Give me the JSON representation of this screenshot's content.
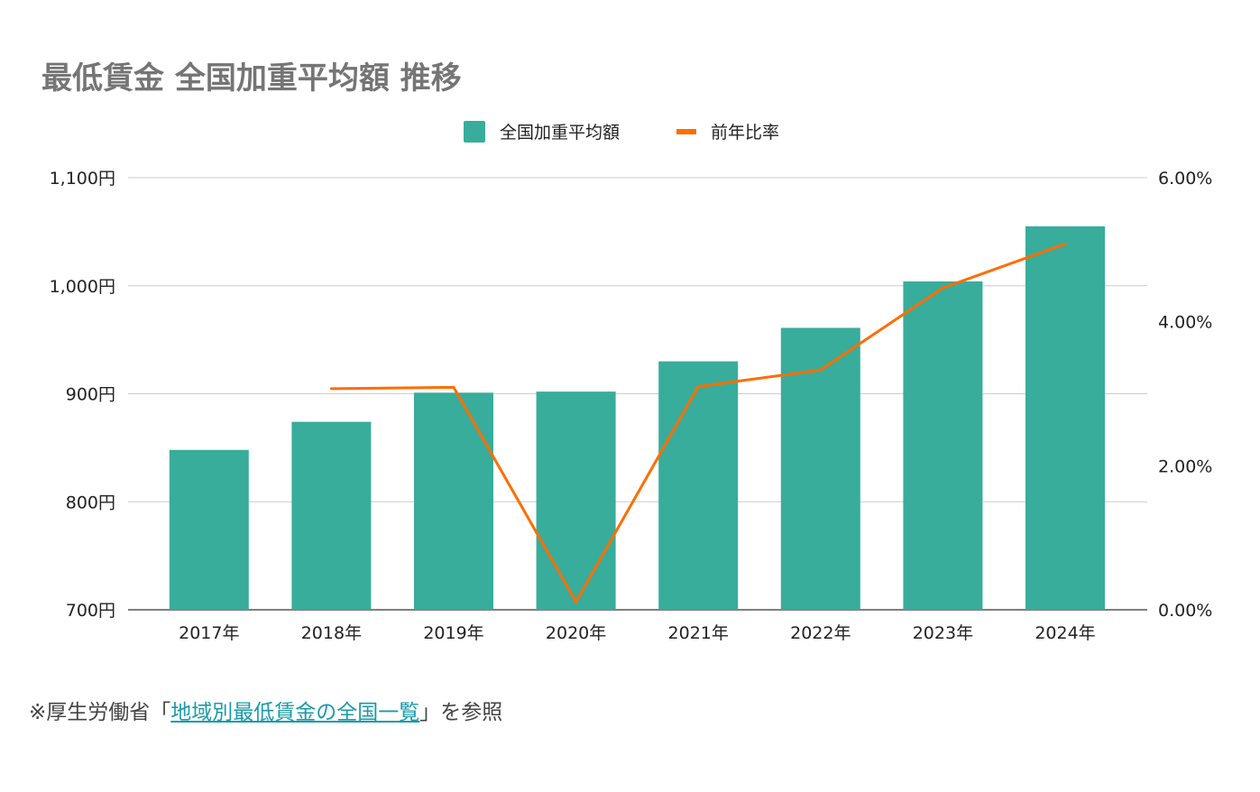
{
  "chart_data": {
    "type": "bar+line",
    "title": "最低賃金 全国加重平均額 推移",
    "categories": [
      "2017年",
      "2018年",
      "2019年",
      "2020年",
      "2021年",
      "2022年",
      "2023年",
      "2024年"
    ],
    "series": [
      {
        "name": "全国加重平均額",
        "type": "bar",
        "axis": "left",
        "color": "#38ad9b",
        "values": [
          848,
          874,
          901,
          902,
          930,
          961,
          1004,
          1055
        ]
      },
      {
        "name": "前年比率",
        "type": "line",
        "axis": "right",
        "color": "#ff6d01",
        "values": [
          null,
          3.07,
          3.09,
          0.11,
          3.1,
          3.33,
          4.47,
          5.08
        ]
      }
    ],
    "left_axis": {
      "ylim": [
        700,
        1100
      ],
      "ticks": [
        700,
        800,
        900,
        1000,
        1100
      ],
      "tick_labels": [
        "700円",
        "800円",
        "900円",
        "1,000円",
        "1,100円"
      ]
    },
    "right_axis": {
      "ylim": [
        0,
        6
      ],
      "ticks": [
        0,
        2,
        4,
        6
      ],
      "tick_labels": [
        "0.00%",
        "2.00%",
        "4.00%",
        "6.00%"
      ]
    },
    "legend": "top-center",
    "grid": true
  },
  "footer": {
    "prefix": "※厚生労働省「",
    "link": "地域別最低賃金の全国一覧",
    "suffix": "」を参照"
  }
}
